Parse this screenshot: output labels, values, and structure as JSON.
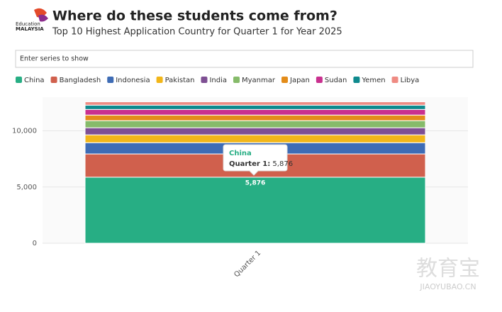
{
  "logo": {
    "line1": "Education",
    "line2": "MALAYSIA"
  },
  "search_placeholder": "Enter series to show",
  "watermark": {
    "main": "教育宝",
    "sub": "JIAOYUBAO.CN"
  },
  "tooltip": {
    "title": "China",
    "label": "Quarter 1:",
    "value": "5,876"
  },
  "chart_data": {
    "type": "stacked-bar",
    "title": "Where do these students come from?",
    "subtitle": "Top 10 Highest Application Country for Quarter 1 for Year 2025",
    "categories": [
      "Quarter 1"
    ],
    "series": [
      {
        "name": "China",
        "color": "#27ae84",
        "values": [
          5876
        ],
        "value_labels": [
          "5,876"
        ]
      },
      {
        "name": "Bangladesh",
        "color": "#d0604d",
        "values": [
          2070
        ]
      },
      {
        "name": "Indonesia",
        "color": "#3e6cb5",
        "values": [
          1000
        ]
      },
      {
        "name": "Pakistan",
        "color": "#f2b619",
        "values": [
          700
        ]
      },
      {
        "name": "India",
        "color": "#7e4f93",
        "values": [
          630
        ]
      },
      {
        "name": "Myanmar",
        "color": "#86bb6a",
        "values": [
          630
        ]
      },
      {
        "name": "Japan",
        "color": "#e38c1a",
        "values": [
          500
        ]
      },
      {
        "name": "Sudan",
        "color": "#c9308f",
        "values": [
          500
        ]
      },
      {
        "name": "Yemen",
        "color": "#0f8a8e",
        "values": [
          380
        ]
      },
      {
        "name": "Libya",
        "color": "#ef8b83",
        "values": [
          300
        ]
      }
    ],
    "ylim": [
      0,
      13000
    ],
    "yticks": [
      0,
      {
        "value": 5000,
        "label": "5,000"
      },
      {
        "value": 10000,
        "label": "10,000"
      }
    ],
    "grid": true
  }
}
